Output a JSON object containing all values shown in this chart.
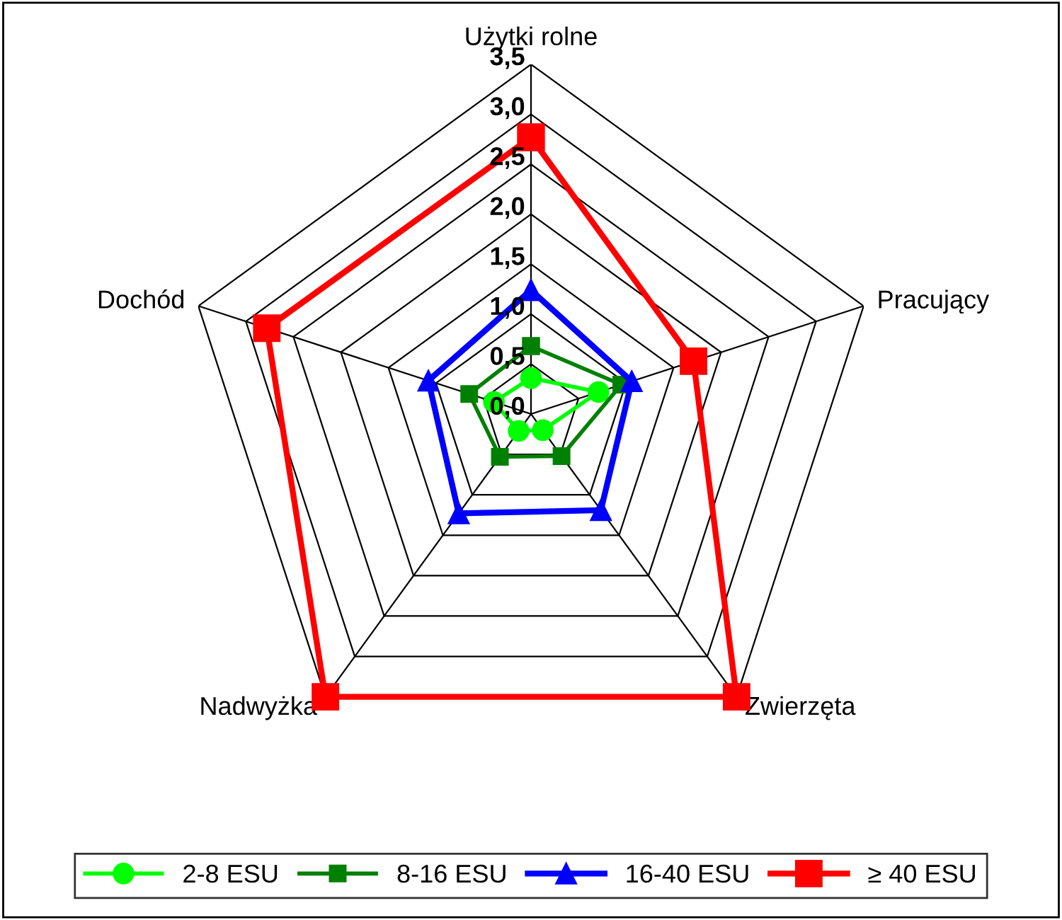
{
  "chart_data": {
    "type": "radar",
    "categories": [
      "Użytki rolne",
      "Pracujący",
      "Zwierzęta",
      "Nadwyżka",
      "Dochód"
    ],
    "ylim": [
      0,
      3.5
    ],
    "yticks": [
      {
        "value": 0,
        "label": "0,0"
      },
      {
        "value": 0.5,
        "label": "0,5"
      },
      {
        "value": 1,
        "label": "1,0"
      },
      {
        "value": 1.5,
        "label": "1,5"
      },
      {
        "value": 2,
        "label": "2,0"
      },
      {
        "value": 2.5,
        "label": "2,5"
      },
      {
        "value": 3,
        "label": "3,0"
      },
      {
        "value": 3.5,
        "label": "3,5"
      }
    ],
    "grid": true,
    "legend": "bottom",
    "series": [
      {
        "name": "2-8 ESU",
        "color": "#00ff00",
        "marker": "circle",
        "values": [
          0.36,
          0.71,
          0.2,
          0.21,
          0.39
        ]
      },
      {
        "name": "8-16 ESU",
        "color": "#008000",
        "marker": "square",
        "values": [
          0.68,
          0.95,
          0.52,
          0.53,
          0.65
        ]
      },
      {
        "name": "16-40 ESU",
        "color": "#0000ff",
        "marker": "triangle",
        "values": [
          1.24,
          1.06,
          1.19,
          1.23,
          1.08
        ]
      },
      {
        "name": "≥ 40 ESU",
        "color": "#ff0000",
        "marker": "square",
        "values": [
          2.77,
          1.71,
          3.5,
          3.5,
          2.78
        ]
      }
    ]
  }
}
